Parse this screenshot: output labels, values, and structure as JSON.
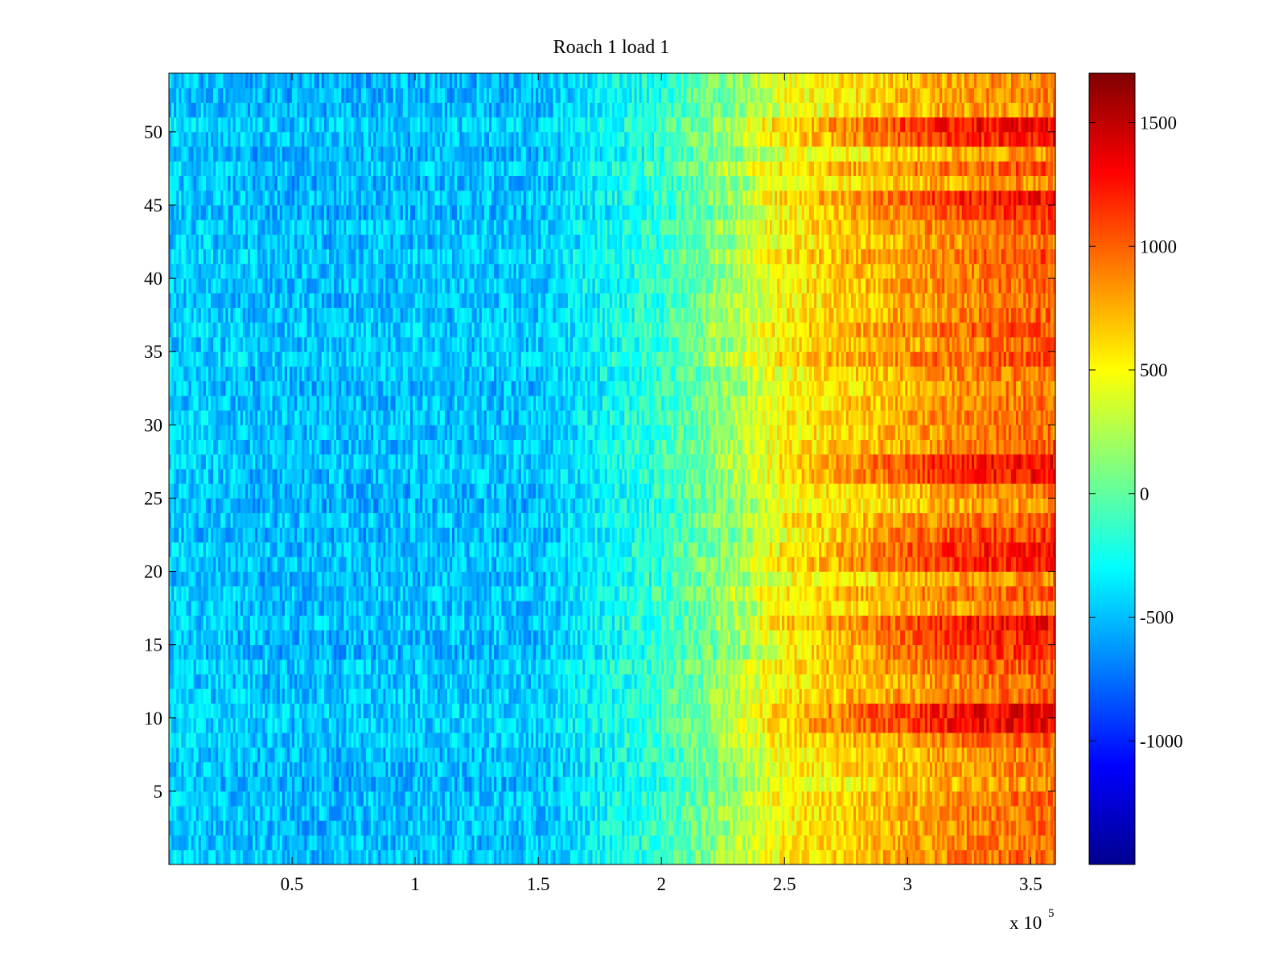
{
  "chart_data": {
    "type": "heatmap",
    "title": "Roach 1 load 1",
    "xlabel": "",
    "ylabel": "",
    "x_range": [
      0,
      360000
    ],
    "y_range": [
      0,
      54
    ],
    "x_ticks": [
      50000,
      100000,
      150000,
      200000,
      250000,
      300000,
      350000
    ],
    "x_tick_labels": [
      "0.5",
      "1",
      "1.5",
      "2",
      "2.5",
      "3",
      "3.5"
    ],
    "x_multiplier_label": "x 10",
    "x_multiplier_exponent": "5",
    "y_ticks": [
      5,
      10,
      15,
      20,
      25,
      30,
      35,
      40,
      45,
      50
    ],
    "y_tick_labels": [
      "5",
      "10",
      "15",
      "20",
      "25",
      "30",
      "35",
      "40",
      "45",
      "50"
    ],
    "colormap": "jet",
    "color_range": [
      -1500,
      1700
    ],
    "colorbar_ticks": [
      -1000,
      -500,
      0,
      500,
      1000,
      1500
    ],
    "colorbar_tick_labels": [
      "-1000",
      "-500",
      "0",
      "500",
      "1000",
      "1500"
    ],
    "rows": 54,
    "trend": {
      "x_knots": [
        0,
        50000,
        100000,
        150000,
        200000,
        230000,
        250000,
        300000,
        330000,
        360000
      ],
      "mean_value": [
        -450,
        -520,
        -500,
        -480,
        -150,
        200,
        500,
        750,
        900,
        950
      ]
    },
    "strong_rows": [
      10,
      11,
      15,
      16,
      17,
      21,
      22,
      23,
      27,
      28,
      45,
      46,
      50,
      51
    ],
    "noise_amplitude": 220,
    "grid": false,
    "legend": "none"
  }
}
